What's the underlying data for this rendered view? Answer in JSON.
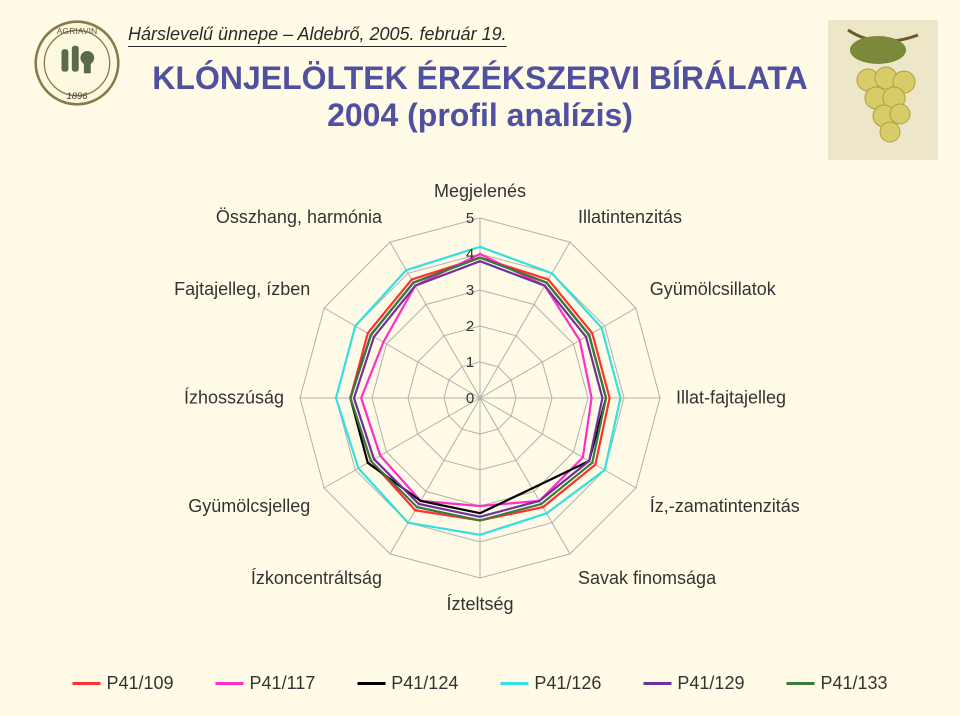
{
  "header": "Hárslevelű ünnepe – Aldebrő, 2005. február 19.",
  "title": {
    "line1": "KLÓNJELÖLTEK ÉRZÉKSZERVI BÍRÁLATA",
    "line2": "2004 (profil analízis)"
  },
  "radar": {
    "type": "radar",
    "max": 5,
    "ticks": [
      0,
      1,
      2,
      3,
      4,
      5
    ],
    "grid_color": "#b0b0b0",
    "background_color": "#fffbe6",
    "line_width": 2.2,
    "axes": [
      "Megjelenés",
      "Illatintenzitás",
      "Gyümölcsillatok",
      "Illat-fajtajelleg",
      "Íz,-zamatintenzitás",
      "Savak finomsága",
      "Ízteltség",
      "Ízkoncentráltság",
      "Gyümölcsjelleg",
      "Ízhosszúság",
      "Fajtajelleg, ízben",
      "Összhang, harmónia"
    ],
    "series": [
      {
        "name": "P41/109",
        "color": "#ff3030",
        "values": [
          3.9,
          3.8,
          3.6,
          3.6,
          3.7,
          3.5,
          3.4,
          3.6,
          3.5,
          3.6,
          3.6,
          3.8
        ]
      },
      {
        "name": "P41/117",
        "color": "#ff2ec8",
        "values": [
          4.0,
          3.6,
          3.2,
          3.1,
          3.3,
          3.3,
          3.0,
          3.3,
          3.2,
          3.3,
          3.1,
          3.6
        ]
      },
      {
        "name": "P41/124",
        "color": "#000000",
        "values": [
          3.9,
          3.7,
          3.5,
          3.5,
          3.5,
          2.9,
          3.2,
          3.3,
          3.6,
          3.6,
          3.5,
          3.7
        ]
      },
      {
        "name": "P41/126",
        "color": "#33e0e0",
        "values": [
          4.2,
          4.0,
          3.9,
          3.9,
          4.0,
          3.7,
          3.8,
          4.0,
          3.9,
          4.0,
          4.0,
          4.1
        ]
      },
      {
        "name": "P41/129",
        "color": "#7030a0",
        "values": [
          3.8,
          3.6,
          3.4,
          3.4,
          3.5,
          3.3,
          3.3,
          3.4,
          3.4,
          3.5,
          3.4,
          3.6
        ]
      },
      {
        "name": "P41/133",
        "color": "#3a7a3a",
        "values": [
          3.9,
          3.7,
          3.5,
          3.5,
          3.6,
          3.4,
          3.4,
          3.5,
          3.5,
          3.6,
          3.5,
          3.7
        ]
      }
    ]
  },
  "badge_year": "1896",
  "legend_font_size": 18,
  "title_color": "#5050a0",
  "title_font_size": 32
}
